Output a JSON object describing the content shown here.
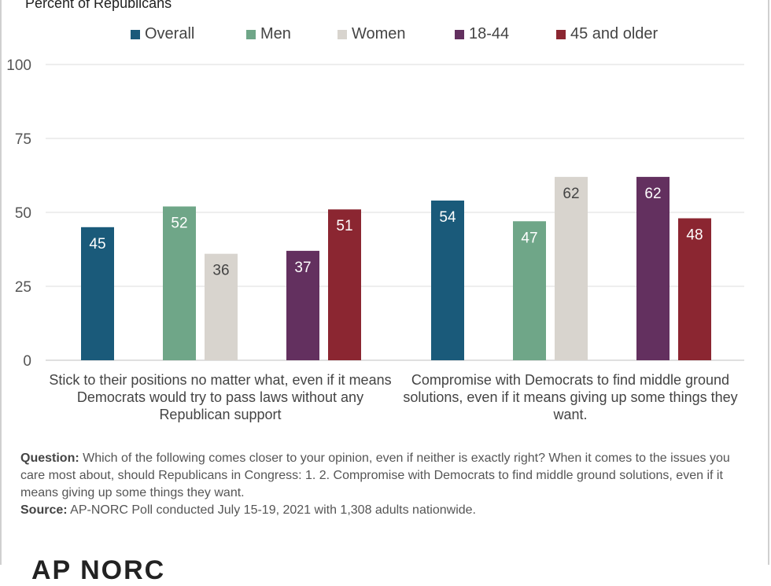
{
  "subtitle": "Percent of Republicans",
  "chart_data": {
    "type": "bar",
    "categories": [
      "Stick to their positions no matter what, even if it means Democrats would try to pass laws without any Republican support",
      "Compromise with Democrats to find middle ground solutions, even if it means giving up some things they want."
    ],
    "series": [
      {
        "name": "Overall",
        "color": "#1a5a7a",
        "values": [
          45,
          54
        ]
      },
      {
        "name": "Men",
        "color": "#6fa688",
        "values": [
          52,
          47
        ]
      },
      {
        "name": "Women",
        "color": "#d8d4ce",
        "values": [
          36,
          62
        ]
      },
      {
        "name": "18-44",
        "color": "#63305f",
        "values": [
          37,
          62
        ]
      },
      {
        "name": "45 and older",
        "color": "#8b2631",
        "values": [
          51,
          48
        ]
      }
    ],
    "ylim": [
      0,
      100
    ],
    "yticks": [
      0,
      25,
      50,
      75,
      100
    ],
    "grid": true,
    "legend": "top"
  },
  "note": {
    "question_label": "Question:",
    "question_text": "Which of the following comes closer to your opinion, even if neither is exactly right? When it comes to the issues you care most about, should Republicans in Congress: 1. 2. Compromise with Democrats to find middle ground solutions, even if it means giving up some things they want.",
    "source_label": "Source:",
    "source_text": "AP-NORC Poll  conducted July 15-19, 2021 with 1,308 adults nationwide."
  },
  "logo_text": "AP NORC"
}
